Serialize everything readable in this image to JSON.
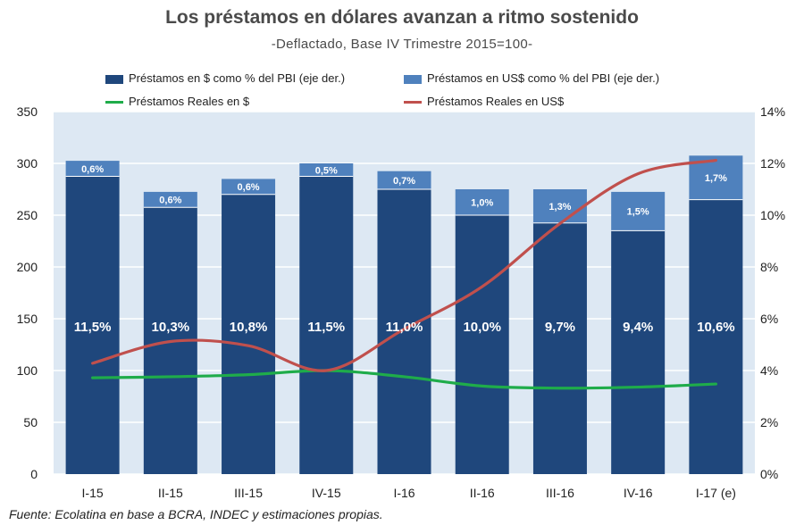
{
  "chart_data": {
    "type": "bar",
    "title": "Los préstamos en dólares avanzan a ritmo sostenido",
    "subtitle": "-Deflactado, Base IV Trimestre 2015=100-",
    "categories": [
      "I-15",
      "II-15",
      "III-15",
      "IV-15",
      "I-16",
      "II-16",
      "III-16",
      "IV-16",
      "I-17 (e)"
    ],
    "left_axis": {
      "ylim": [
        0,
        350
      ],
      "ticks": [
        "0",
        "50",
        "100",
        "150",
        "200",
        "250",
        "300",
        "350"
      ]
    },
    "right_axis": {
      "ylim": [
        0,
        14
      ],
      "ticks": [
        "0%",
        "2%",
        "4%",
        "6%",
        "8%",
        "10%",
        "12%",
        "14%"
      ]
    },
    "grid": true,
    "legend_position": "top",
    "series": [
      {
        "name": "Préstamos en $ como % del PBI (eje der.)",
        "kind": "stacked-bar",
        "axis": "right",
        "color": "#1f477c",
        "values": [
          11.5,
          10.3,
          10.8,
          11.5,
          11.0,
          10.0,
          9.7,
          9.4,
          10.6
        ],
        "labels": [
          "11,5%",
          "10,3%",
          "10,8%",
          "11,5%",
          "11,0%",
          "10,0%",
          "9,7%",
          "9,4%",
          "10,6%"
        ]
      },
      {
        "name": "Préstamos en US$ como % del PBI (eje der.)",
        "kind": "stacked-bar",
        "axis": "right",
        "color": "#4f81bd",
        "values": [
          0.6,
          0.6,
          0.6,
          0.5,
          0.7,
          1.0,
          1.3,
          1.5,
          1.7
        ],
        "labels": [
          "0,6%",
          "0,6%",
          "0,6%",
          "0,5%",
          "0,7%",
          "1,0%",
          "1,3%",
          "1,5%",
          "1,7%"
        ]
      },
      {
        "name": "Préstamos Reales en $",
        "kind": "line",
        "axis": "left",
        "color": "#1fac4a",
        "values": [
          93,
          94,
          96,
          100,
          94,
          85,
          83,
          84,
          87
        ]
      },
      {
        "name": "Préstamos Reales en US$",
        "kind": "line",
        "axis": "left",
        "color": "#c0504d",
        "values": [
          107,
          128,
          124,
          100,
          140,
          181,
          242,
          290,
          303
        ]
      }
    ]
  },
  "source": "Fuente: Ecolatina en base a BCRA, INDEC y  estimaciones propias."
}
